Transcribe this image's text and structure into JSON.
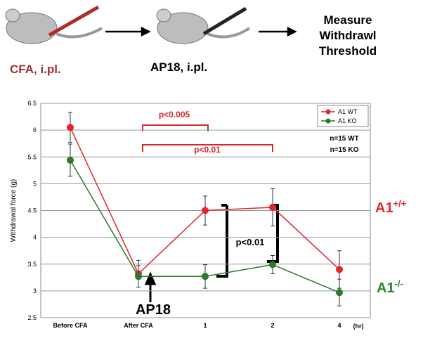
{
  "schematic": {
    "steps": [
      "CFA, i.pl.",
      "AP18, i.pl.",
      "Measure Withdrawl Threshold"
    ]
  },
  "chart_data": {
    "type": "line",
    "ylabel": "Withdrawal force (g)",
    "xlabel": "(hr)",
    "categories": [
      "Before CFA",
      "After CFA",
      "1",
      "2",
      "4"
    ],
    "series": [
      {
        "name": "A1 WT",
        "color": "#e0262b",
        "values": [
          6.05,
          3.32,
          4.5,
          4.56,
          3.4
        ],
        "errors": [
          0.28,
          0.25,
          0.27,
          0.35,
          0.35
        ]
      },
      {
        "name": "A1 KO",
        "color": "#2a7a2a",
        "values": [
          5.44,
          3.27,
          3.27,
          3.49,
          2.97
        ],
        "errors": [
          0.3,
          0.2,
          0.22,
          0.17,
          0.25
        ]
      }
    ],
    "ylim": [
      2.5,
      6.5
    ],
    "yticks": [
      2.5,
      3,
      3.5,
      4,
      4.5,
      5,
      5.5,
      6,
      6.5
    ],
    "grid": true,
    "legend": "top-right",
    "annotations": [
      {
        "text": "p<0.005",
        "color": "#d42a2a"
      },
      {
        "text": "p<0.01",
        "color": "#d42a2a"
      },
      {
        "text": "n=15 WT",
        "color": "#000000"
      },
      {
        "text": "n=15 KO",
        "color": "#000000"
      },
      {
        "text": "p<0.01",
        "color": "#000000"
      },
      {
        "text": "AP18",
        "color": "#000000"
      },
      {
        "text": "A1",
        "sup": "+/+",
        "color": "#e0262b"
      },
      {
        "text": "A1",
        "sup": "-/-",
        "color": "#2a8a2a"
      }
    ]
  }
}
